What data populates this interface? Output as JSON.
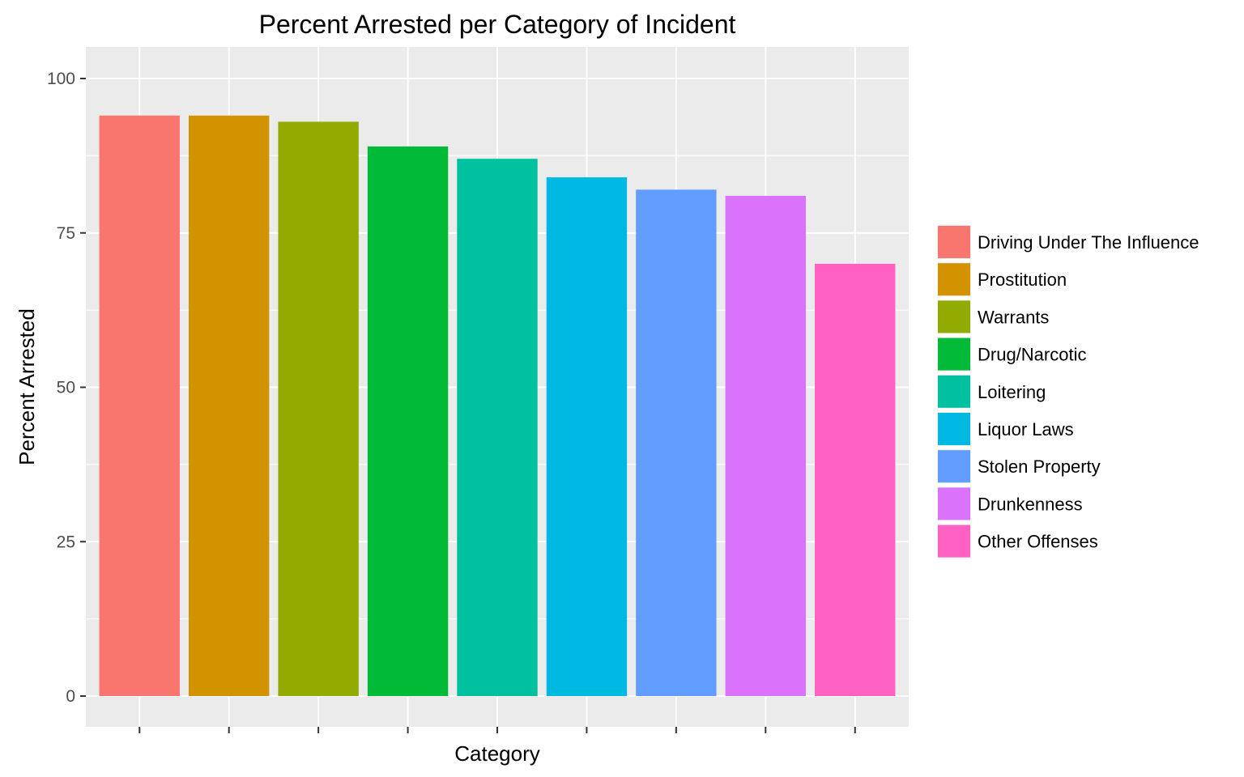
{
  "chart_data": {
    "type": "bar",
    "title": "Percent Arrested per Category of Incident",
    "xlabel": "Category",
    "ylabel": "Percent Arrested",
    "ylim": [
      0,
      105
    ],
    "yticks": [
      0,
      25,
      50,
      75,
      100
    ],
    "grid": true,
    "legend_position": "right",
    "categories": [
      "Driving Under The Influence",
      "Prostitution",
      "Warrants",
      "Drug/Narcotic",
      "Loitering",
      "Liquor Laws",
      "Stolen Property",
      "Drunkenness",
      "Other Offenses"
    ],
    "values": [
      94,
      94,
      93,
      89,
      87,
      84,
      82,
      81,
      70
    ],
    "colors": [
      "#F8766D",
      "#D39200",
      "#93AA00",
      "#00BA38",
      "#00C19F",
      "#00B9E3",
      "#619CFF",
      "#DB72FB",
      "#FF61C3"
    ],
    "legend": [
      "Driving Under The Influence",
      "Prostitution",
      "Warrants",
      "Drug/Narcotic",
      "Loitering",
      "Liquor Laws",
      "Stolen Property",
      "Drunkenness",
      "Other Offenses"
    ]
  }
}
